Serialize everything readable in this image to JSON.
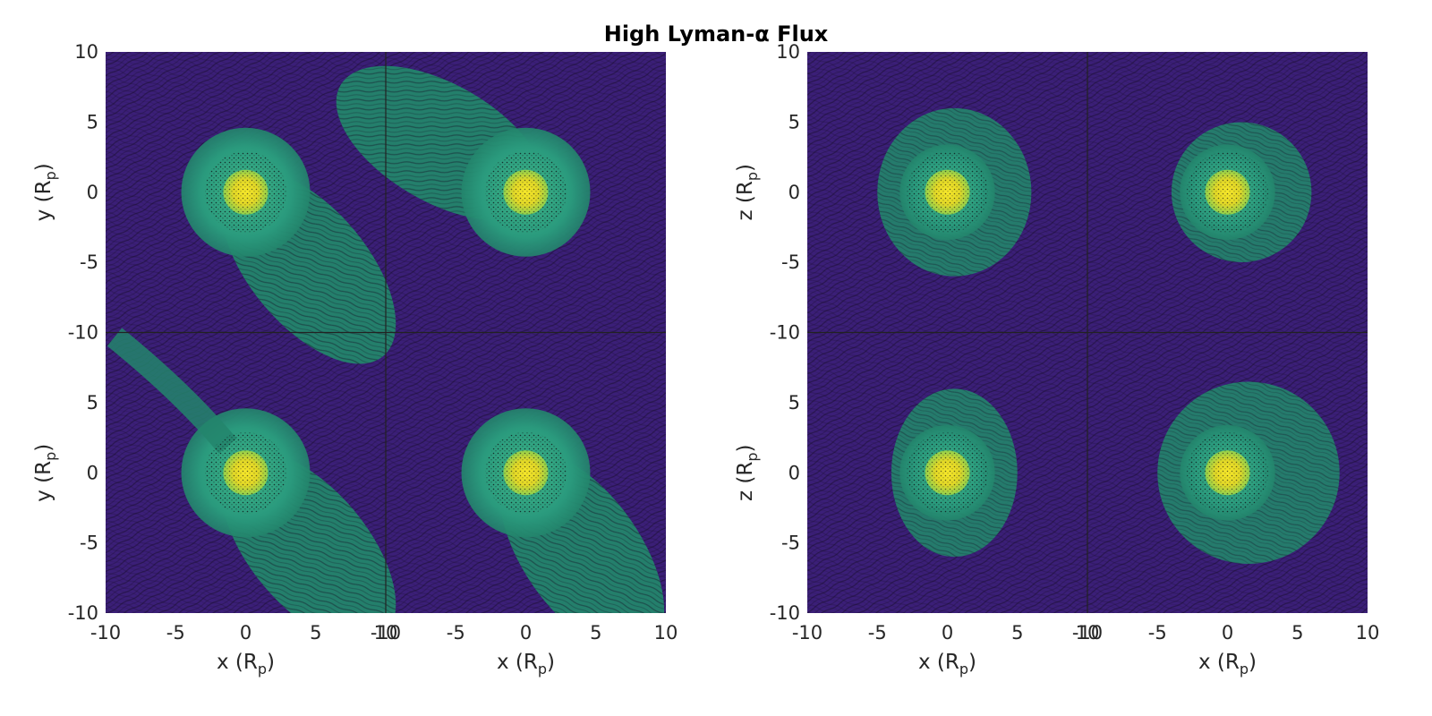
{
  "title": "High Lyman-α Flux",
  "colors": {
    "background": "#3b1f78",
    "outflow": "#23856c",
    "halo": "#3ba587",
    "core": "#f2e51f",
    "streamline": "#140a22"
  },
  "chart_data": {
    "type": "heatmap",
    "description_visible": "Line-integral-convolution streamline maps of outflow around a planet, 2 panels (x-y plane and x-z plane), each a 2x2 grid of subplots",
    "panels": [
      {
        "id": "xy",
        "xlabel": "x (R_p)",
        "ylabel": "y (R_p)",
        "xlim": [
          -10,
          10
        ],
        "ylim": [
          -10,
          10
        ],
        "xticks": [
          "-10",
          "-5",
          "0",
          "5",
          "10"
        ],
        "yticks": [
          "10",
          "5",
          "0",
          "-5",
          "-10"
        ],
        "subplots": [
          {
            "pos": "top-left",
            "planet": [
              0,
              0
            ],
            "tail_angle_deg": -50,
            "tail_length": 14,
            "bulge_direction": "upper-left"
          },
          {
            "pos": "top-right",
            "planet": [
              0,
              0
            ],
            "tail_angle_deg": 150,
            "tail_length": 14,
            "bulge_direction": "lower-right"
          },
          {
            "pos": "bottom-left",
            "planet": [
              0,
              0
            ],
            "tail_angle_deg": -50,
            "tail_length": 14,
            "upstream_stream": "upper-left"
          },
          {
            "pos": "bottom-right",
            "planet": [
              0,
              0
            ],
            "tail_angle_deg": -55,
            "tail_length": 14,
            "bulge_direction": "left"
          }
        ]
      },
      {
        "id": "xz",
        "xlabel": "x (R_p)",
        "ylabel": "z (R_p)",
        "xlim": [
          -10,
          10
        ],
        "ylim": [
          -10,
          10
        ],
        "xticks": [
          "-10",
          "-5",
          "0",
          "5",
          "10"
        ],
        "yticks": [
          "10",
          "5",
          "0",
          "-5",
          "-10"
        ],
        "subplots": [
          {
            "pos": "top-left",
            "planet": [
              0,
              0
            ],
            "envelope_x": [
              -5,
              6
            ],
            "envelope_z": [
              -6,
              6
            ]
          },
          {
            "pos": "top-right",
            "planet": [
              0,
              0
            ],
            "envelope_x": [
              -4,
              6
            ],
            "envelope_z": [
              -5,
              5
            ]
          },
          {
            "pos": "bottom-left",
            "planet": [
              0,
              0
            ],
            "envelope_x": [
              -4,
              5
            ],
            "envelope_z": [
              -6,
              6
            ]
          },
          {
            "pos": "bottom-right",
            "planet": [
              0,
              0
            ],
            "envelope_x": [
              -5,
              8
            ],
            "envelope_z": [
              -6,
              7
            ]
          }
        ]
      }
    ]
  }
}
